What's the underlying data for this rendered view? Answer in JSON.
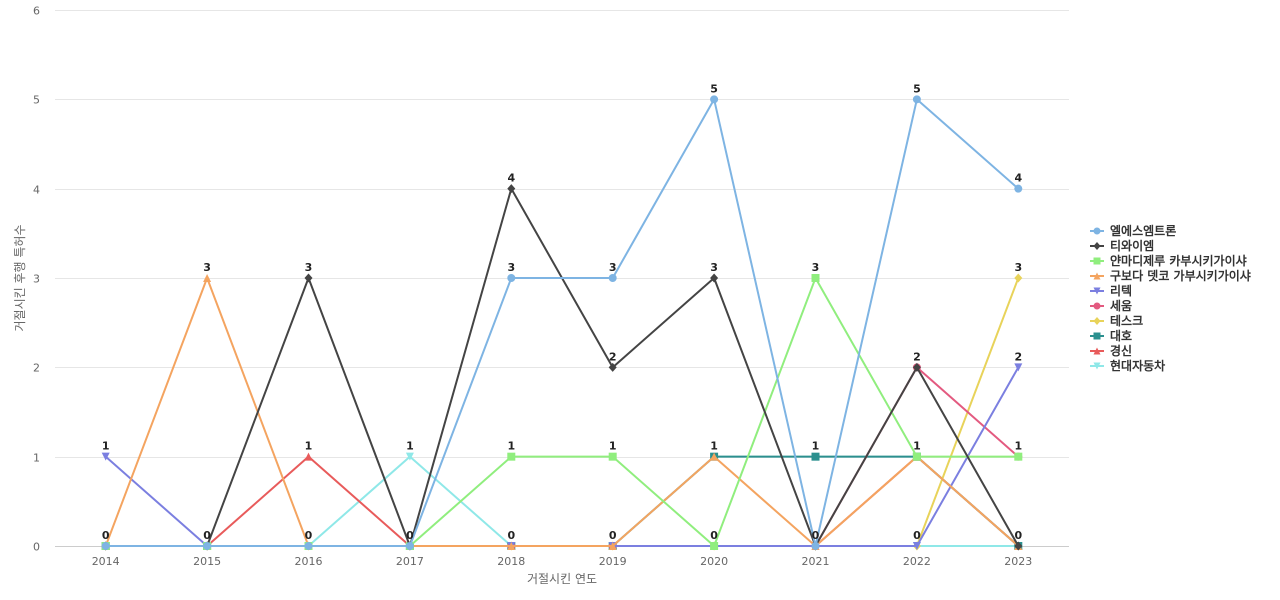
{
  "chart_data": {
    "type": "line",
    "xlabel": "거절시킨 연도",
    "ylabel": "거절시킨 후행 특허수",
    "categories": [
      "2014",
      "2015",
      "2016",
      "2017",
      "2018",
      "2019",
      "2020",
      "2021",
      "2022",
      "2023"
    ],
    "ylim": [
      0,
      6
    ],
    "yticks": [
      0,
      1,
      2,
      3,
      4,
      5,
      6
    ],
    "grid": true,
    "legend_position": "right",
    "series": [
      {
        "name": "엘에스엠트론",
        "color": "#7EB4E3",
        "marker": "circle",
        "values": [
          0,
          0,
          0,
          0,
          3,
          3,
          5,
          0,
          5,
          4
        ]
      },
      {
        "name": "티와이엠",
        "color": "#444444",
        "marker": "diamond",
        "values": [
          0,
          0,
          3,
          0,
          4,
          2,
          3,
          0,
          2,
          0
        ]
      },
      {
        "name": "얀마디제루 카부시키가이샤",
        "color": "#90EE7E",
        "marker": "square",
        "values": [
          0,
          0,
          0,
          0,
          1,
          1,
          0,
          3,
          1,
          1
        ]
      },
      {
        "name": "구보다 뎃코 가부시키가이샤",
        "color": "#F4A460",
        "marker": "triangle",
        "values": [
          0,
          3,
          0,
          0,
          0,
          0,
          1,
          0,
          1,
          0
        ]
      },
      {
        "name": "리텍",
        "color": "#7B7FE0",
        "marker": "triangle-down",
        "values": [
          1,
          0,
          0,
          0,
          0,
          0,
          0,
          0,
          0,
          2
        ]
      },
      {
        "name": "세움",
        "color": "#E35A80",
        "marker": "circle",
        "values": [
          0,
          0,
          0,
          0,
          0,
          0,
          0,
          0,
          2,
          1
        ]
      },
      {
        "name": "테스크",
        "color": "#E8D35A",
        "marker": "diamond",
        "values": [
          0,
          0,
          0,
          0,
          0,
          0,
          0,
          0,
          0,
          3
        ]
      },
      {
        "name": "대호",
        "color": "#2B908F",
        "marker": "square",
        "values": [
          0,
          0,
          0,
          0,
          0,
          0,
          1,
          1,
          1,
          0
        ]
      },
      {
        "name": "경신",
        "color": "#E85B5B",
        "marker": "triangle",
        "values": [
          0,
          0,
          1,
          0,
          0,
          0,
          0,
          0,
          1,
          0
        ]
      },
      {
        "name": "현대자동차",
        "color": "#8FE8E8",
        "marker": "triangle-down",
        "values": [
          0,
          0,
          0,
          1,
          0,
          0,
          0,
          0,
          0,
          0
        ]
      }
    ],
    "data_labels": [
      {
        "x": "2014",
        "y": 1,
        "text": "1"
      },
      {
        "x": "2014",
        "y": 0,
        "text": "0"
      },
      {
        "x": "2015",
        "y": 3,
        "text": "3"
      },
      {
        "x": "2015",
        "y": 0,
        "text": "0"
      },
      {
        "x": "2016",
        "y": 3,
        "text": "3"
      },
      {
        "x": "2016",
        "y": 1,
        "text": "1"
      },
      {
        "x": "2016",
        "y": 0,
        "text": "0"
      },
      {
        "x": "2017",
        "y": 1,
        "text": "1"
      },
      {
        "x": "2017",
        "y": 0,
        "text": "0"
      },
      {
        "x": "2018",
        "y": 4,
        "text": "4"
      },
      {
        "x": "2018",
        "y": 3,
        "text": "3"
      },
      {
        "x": "2018",
        "y": 1,
        "text": "1"
      },
      {
        "x": "2018",
        "y": 0,
        "text": "0"
      },
      {
        "x": "2019",
        "y": 3,
        "text": "3"
      },
      {
        "x": "2019",
        "y": 2,
        "text": "2"
      },
      {
        "x": "2019",
        "y": 1,
        "text": "1"
      },
      {
        "x": "2019",
        "y": 0,
        "text": "0"
      },
      {
        "x": "2020",
        "y": 5,
        "text": "5"
      },
      {
        "x": "2020",
        "y": 3,
        "text": "3"
      },
      {
        "x": "2020",
        "y": 1,
        "text": "1"
      },
      {
        "x": "2020",
        "y": 0,
        "text": "0"
      },
      {
        "x": "2021",
        "y": 3,
        "text": "3"
      },
      {
        "x": "2021",
        "y": 1,
        "text": "1"
      },
      {
        "x": "2021",
        "y": 0,
        "text": "0"
      },
      {
        "x": "2022",
        "y": 5,
        "text": "5"
      },
      {
        "x": "2022",
        "y": 2,
        "text": "2"
      },
      {
        "x": "2022",
        "y": 1,
        "text": "1"
      },
      {
        "x": "2022",
        "y": 0,
        "text": "0"
      },
      {
        "x": "2023",
        "y": 4,
        "text": "4"
      },
      {
        "x": "2023",
        "y": 3,
        "text": "3"
      },
      {
        "x": "2023",
        "y": 2,
        "text": "2"
      },
      {
        "x": "2023",
        "y": 1,
        "text": "1"
      },
      {
        "x": "2023",
        "y": 0,
        "text": "0"
      }
    ]
  }
}
